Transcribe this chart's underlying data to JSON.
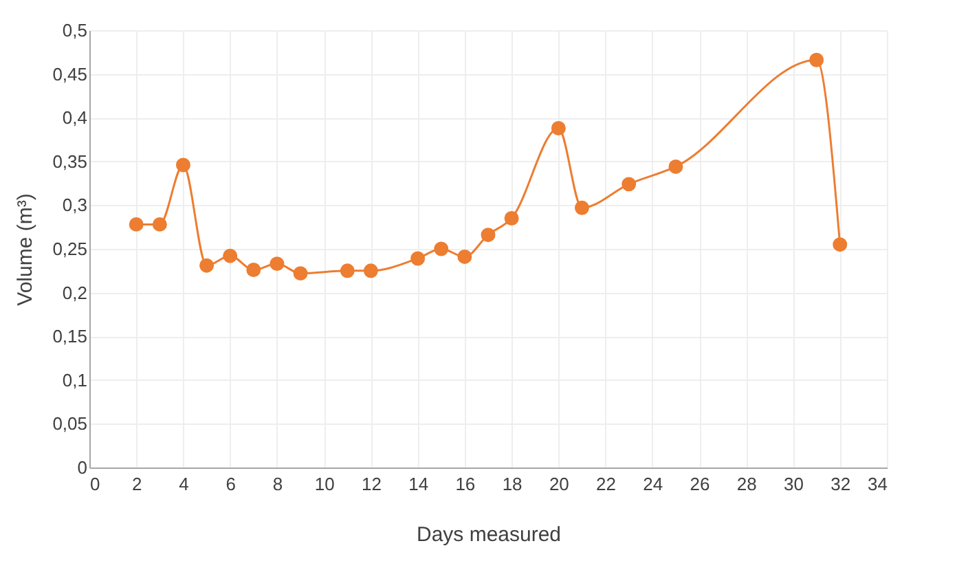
{
  "chart_data": {
    "type": "line",
    "xlabel": "Days measured",
    "ylabel": "Volume (m³)",
    "x": [
      2,
      3,
      4,
      5,
      6,
      7,
      8,
      9,
      11,
      12,
      14,
      15,
      16,
      17,
      18,
      20,
      21,
      23,
      25,
      31,
      32
    ],
    "series": [
      {
        "color": "#ed7d31",
        "values": [
          0.278,
          0.278,
          0.346,
          0.231,
          0.242,
          0.226,
          0.233,
          0.222,
          0.225,
          0.225,
          0.239,
          0.25,
          0.241,
          0.266,
          0.285,
          0.388,
          0.297,
          0.324,
          0.344,
          0.466,
          0.255
        ]
      }
    ],
    "xlim": [
      0,
      34
    ],
    "xticks": [
      0,
      2,
      4,
      6,
      8,
      10,
      12,
      14,
      16,
      18,
      20,
      22,
      24,
      26,
      28,
      30,
      32,
      34
    ],
    "ylim": [
      0,
      0.5
    ],
    "yticks": [
      0,
      {
        "value": 0.05,
        "label": "0,05"
      },
      {
        "value": 0.1,
        "label": "0,1"
      },
      {
        "value": 0.15,
        "label": "0,15"
      },
      {
        "value": 0.2,
        "label": "0,2"
      },
      {
        "value": 0.25,
        "label": "0,25"
      },
      {
        "value": 0.3,
        "label": "0,3"
      },
      {
        "value": 0.35,
        "label": "0,35"
      },
      {
        "value": 0.4,
        "label": "0,4"
      },
      {
        "value": 0.45,
        "label": "0,45"
      },
      {
        "value": 0.5,
        "label": "0,5"
      }
    ],
    "grid": true,
    "marker": "circle",
    "line_style": "solid"
  }
}
